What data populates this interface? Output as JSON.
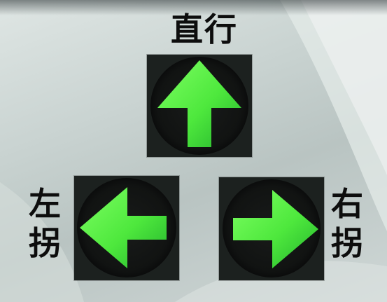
{
  "labels": {
    "straight": "直行",
    "left_chars": [
      "左",
      "拐"
    ],
    "right_chars": [
      "右",
      "拐"
    ]
  },
  "signals": [
    {
      "direction": "up",
      "name": "straight-arrow-icon"
    },
    {
      "direction": "left",
      "name": "left-arrow-icon"
    },
    {
      "direction": "right",
      "name": "right-arrow-icon"
    }
  ],
  "colors": {
    "arrow_green": "#5cf54a",
    "arrow_green_dark": "#1fae2a",
    "housing": "#1c211f",
    "lamp_face": "#141615",
    "text": "#0d0d0d"
  }
}
